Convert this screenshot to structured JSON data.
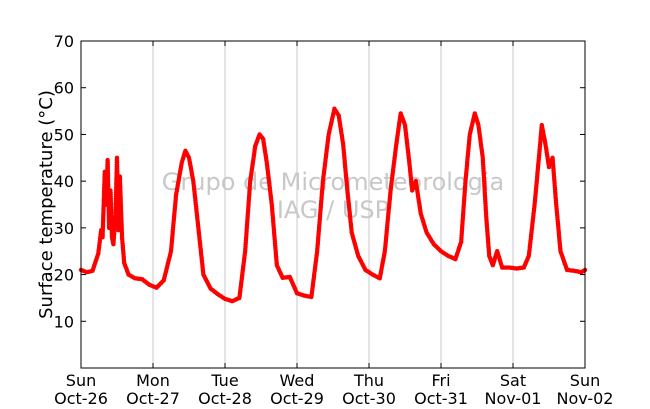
{
  "chart_data": {
    "type": "scatter",
    "title": "",
    "xlabel": "",
    "ylabel": "Surface temperature (°C)",
    "ylim": [
      0,
      70
    ],
    "yticks": [
      10,
      20,
      30,
      40,
      50,
      60,
      70
    ],
    "xlim": [
      0,
      7
    ],
    "xticks": [
      {
        "x": 0,
        "day": "Sun",
        "date": "Oct-26"
      },
      {
        "x": 1,
        "day": "Mon",
        "date": "Oct-27"
      },
      {
        "x": 2,
        "day": "Tue",
        "date": "Oct-28"
      },
      {
        "x": 3,
        "day": "Wed",
        "date": "Oct-29"
      },
      {
        "x": 4,
        "day": "Thu",
        "date": "Oct-30"
      },
      {
        "x": 5,
        "day": "Fri",
        "date": "Oct-31"
      },
      {
        "x": 6,
        "day": "Sat",
        "date": "Nov-01"
      },
      {
        "x": 7,
        "day": "Sun",
        "date": "Nov-02"
      }
    ],
    "grid": "vertical",
    "marker_color": "#ff0000",
    "watermark": [
      "Grupo de Micrometeorologia",
      "IAG / USP"
    ],
    "series": [
      {
        "values": [
          [
            0.0,
            21.0
          ],
          [
            0.08,
            20.5
          ],
          [
            0.16,
            20.8
          ],
          [
            0.24,
            24.5
          ],
          [
            0.28,
            29.5
          ],
          [
            0.3,
            28.0
          ],
          [
            0.33,
            42.0
          ],
          [
            0.35,
            35.0
          ],
          [
            0.37,
            44.5
          ],
          [
            0.39,
            30.0
          ],
          [
            0.41,
            38.0
          ],
          [
            0.43,
            28.0
          ],
          [
            0.45,
            26.5
          ],
          [
            0.48,
            33.0
          ],
          [
            0.5,
            45.0
          ],
          [
            0.52,
            29.5
          ],
          [
            0.54,
            41.0
          ],
          [
            0.57,
            28.0
          ],
          [
            0.6,
            22.5
          ],
          [
            0.66,
            20.0
          ],
          [
            0.75,
            19.2
          ],
          [
            0.85,
            19.0
          ],
          [
            0.95,
            17.8
          ],
          [
            1.05,
            17.2
          ],
          [
            1.15,
            18.8
          ],
          [
            1.25,
            25.0
          ],
          [
            1.32,
            37.0
          ],
          [
            1.4,
            44.0
          ],
          [
            1.45,
            46.5
          ],
          [
            1.5,
            45.0
          ],
          [
            1.56,
            40.0
          ],
          [
            1.63,
            30.0
          ],
          [
            1.7,
            20.0
          ],
          [
            1.8,
            17.0
          ],
          [
            1.9,
            15.8
          ],
          [
            2.0,
            14.8
          ],
          [
            2.1,
            14.3
          ],
          [
            2.2,
            15.0
          ],
          [
            2.28,
            25.0
          ],
          [
            2.35,
            40.0
          ],
          [
            2.42,
            47.5
          ],
          [
            2.48,
            50.0
          ],
          [
            2.53,
            49.0
          ],
          [
            2.58,
            44.0
          ],
          [
            2.65,
            35.0
          ],
          [
            2.72,
            22.0
          ],
          [
            2.8,
            19.3
          ],
          [
            2.9,
            19.5
          ],
          [
            3.0,
            16.0
          ],
          [
            3.1,
            15.5
          ],
          [
            3.2,
            15.2
          ],
          [
            3.28,
            25.0
          ],
          [
            3.36,
            40.0
          ],
          [
            3.44,
            50.0
          ],
          [
            3.52,
            55.5
          ],
          [
            3.58,
            54.0
          ],
          [
            3.64,
            48.0
          ],
          [
            3.7,
            38.0
          ],
          [
            3.76,
            29.0
          ],
          [
            3.85,
            24.0
          ],
          [
            3.95,
            21.0
          ],
          [
            4.05,
            20.0
          ],
          [
            4.15,
            19.2
          ],
          [
            4.22,
            25.0
          ],
          [
            4.3,
            38.0
          ],
          [
            4.38,
            48.0
          ],
          [
            4.44,
            54.5
          ],
          [
            4.5,
            52.0
          ],
          [
            4.56,
            44.0
          ],
          [
            4.6,
            38.0
          ],
          [
            4.65,
            40.0
          ],
          [
            4.72,
            33.0
          ],
          [
            4.8,
            29.0
          ],
          [
            4.9,
            26.5
          ],
          [
            5.0,
            25.0
          ],
          [
            5.1,
            24.0
          ],
          [
            5.2,
            23.3
          ],
          [
            5.28,
            27.0
          ],
          [
            5.34,
            40.0
          ],
          [
            5.4,
            50.0
          ],
          [
            5.47,
            54.5
          ],
          [
            5.52,
            52.0
          ],
          [
            5.58,
            45.0
          ],
          [
            5.63,
            32.0
          ],
          [
            5.67,
            24.0
          ],
          [
            5.72,
            22.0
          ],
          [
            5.78,
            25.0
          ],
          [
            5.85,
            21.5
          ],
          [
            5.95,
            21.5
          ],
          [
            6.05,
            21.3
          ],
          [
            6.15,
            21.5
          ],
          [
            6.22,
            24.0
          ],
          [
            6.3,
            35.0
          ],
          [
            6.36,
            45.0
          ],
          [
            6.4,
            52.0
          ],
          [
            6.45,
            48.0
          ],
          [
            6.5,
            43.0
          ],
          [
            6.55,
            45.0
          ],
          [
            6.6,
            35.0
          ],
          [
            6.66,
            25.0
          ],
          [
            6.75,
            21.0
          ],
          [
            6.85,
            20.8
          ],
          [
            6.95,
            20.5
          ],
          [
            7.0,
            21.0
          ]
        ]
      }
    ]
  }
}
